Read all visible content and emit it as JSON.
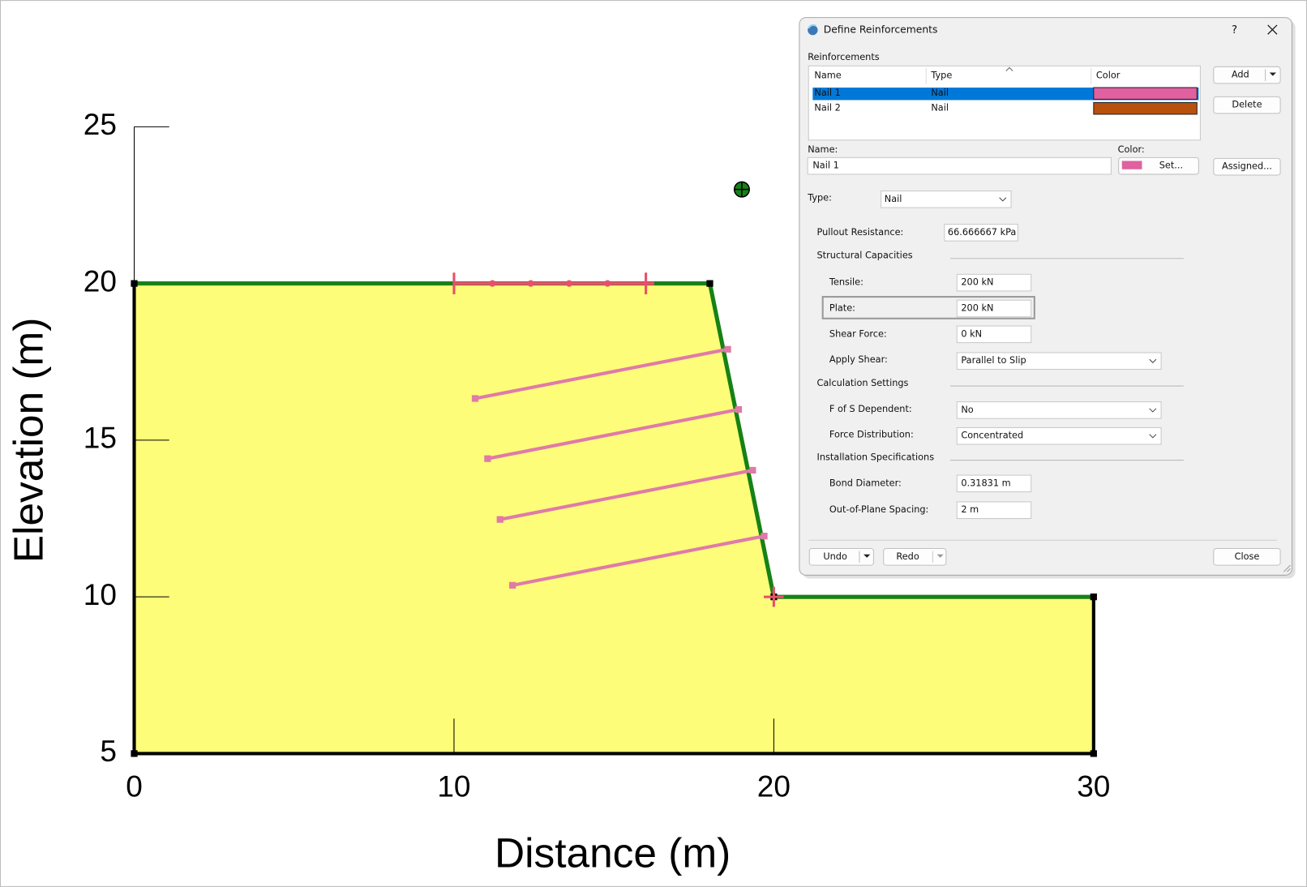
{
  "plot": {
    "x_label": "Distance (m)",
    "y_label": "Elevation (m)",
    "xlim": [
      0,
      30
    ],
    "ylim": [
      5,
      25
    ],
    "xticks": [
      0,
      10,
      20,
      30
    ],
    "yticks": [
      5,
      10,
      15,
      20,
      25
    ],
    "slope": {
      "x": [
        0,
        18,
        20,
        30,
        30,
        0
      ],
      "y": [
        20,
        20,
        10,
        10,
        5,
        5
      ]
    },
    "nails": [
      {
        "x": [
          10.66,
          18.56
        ],
        "y": [
          16.33,
          17.9
        ]
      },
      {
        "x": [
          11.05,
          18.9
        ],
        "y": [
          14.41,
          15.98
        ]
      },
      {
        "x": [
          11.44,
          19.34
        ],
        "y": [
          12.47,
          14.04
        ]
      },
      {
        "x": [
          11.83,
          19.7
        ],
        "y": [
          10.37,
          11.94
        ]
      }
    ],
    "surface_limits": {
      "x": [
        10,
        16
      ],
      "y": [
        20,
        20
      ]
    },
    "surface_points": {
      "x": [
        11.2,
        12.4,
        13.6,
        14.8
      ],
      "y": [
        20,
        20,
        20,
        20
      ]
    },
    "toe_marker": {
      "x": 20,
      "y": 10
    },
    "slip_center": {
      "x": 19,
      "y": 23
    },
    "slope_fill": "#fdfd7a",
    "surface_color": "#168216",
    "nail_color": "#e07aa8",
    "limit_color": "#e8506a"
  },
  "dialog": {
    "title": "Define Reinforcements",
    "help": "?",
    "reinforcements_label": "Reinforcements",
    "table": {
      "columns": [
        "Name",
        "Type",
        "Color"
      ],
      "rows": [
        [
          "Nail 1",
          "Nail"
        ],
        [
          "Nail 2",
          "Nail"
        ]
      ],
      "row_colors": [
        "#e060a0",
        "#b8500e"
      ]
    },
    "add_button": "Add",
    "delete_button": "Delete",
    "name_label": "Name:",
    "name_value": "Nail 1",
    "color_label": "Color:",
    "set_button": "Set...",
    "assigned_button": "Assigned...",
    "type_label": "Type:",
    "type_value": "Nail",
    "pullout_label": "Pullout Resistance:",
    "pullout_value": "66.666667 kPa",
    "structural_section": "Structural Capacities",
    "tensile_label": "Tensile:",
    "tensile_value": "200 kN",
    "plate_label": "Plate:",
    "plate_value": "200 kN",
    "shear_label": "Shear Force:",
    "shear_value": "0 kN",
    "apply_shear_label": "Apply Shear:",
    "apply_shear_value": "Parallel to Slip",
    "calc_section": "Calculation Settings",
    "fos_label": "F of S Dependent:",
    "fos_value": "No",
    "force_dist_label": "Force Distribution:",
    "force_dist_value": "Concentrated",
    "install_section": "Installation Specifications",
    "bond_label": "Bond Diameter:",
    "bond_value": "0.31831 m",
    "spacing_label": "Out-of-Plane Spacing:",
    "spacing_value": "2 m",
    "undo_button": "Undo",
    "redo_button": "Redo",
    "close_button": "Close"
  }
}
